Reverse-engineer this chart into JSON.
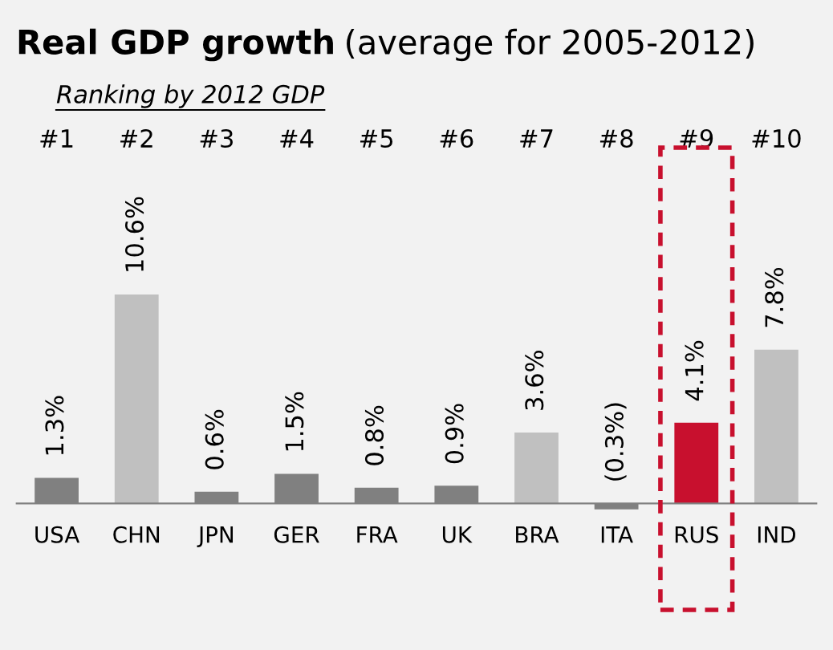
{
  "chart_data": {
    "type": "bar",
    "title": "Real GDP growth",
    "subtitle": "(average for 2005-2012)",
    "annotations": [
      "Ranking by 2012 GDP",
      "#1",
      "#2",
      "#3",
      "#4",
      "#5",
      "#6",
      "#7",
      "#8",
      "#9",
      "#10"
    ],
    "categories": [
      "USA",
      "CHN",
      "JPN",
      "GER",
      "FRA",
      "UK",
      "BRA",
      "ITA",
      "RUS",
      "IND"
    ],
    "values": [
      1.3,
      10.6,
      0.6,
      1.5,
      0.8,
      0.9,
      3.6,
      -0.3,
      4.1,
      7.8
    ],
    "value_labels": [
      "1.3%",
      "10.6%",
      "0.6%",
      "1.5%",
      "0.8%",
      "0.9%",
      "3.6%",
      "(0.3%)",
      "4.1%",
      "7.8%"
    ],
    "colors": [
      "#808080",
      "#c0c0c0",
      "#808080",
      "#808080",
      "#808080",
      "#808080",
      "#c0c0c0",
      "#808080",
      "#c8102e",
      "#c0c0c0"
    ],
    "grid": false,
    "legend": false
  }
}
